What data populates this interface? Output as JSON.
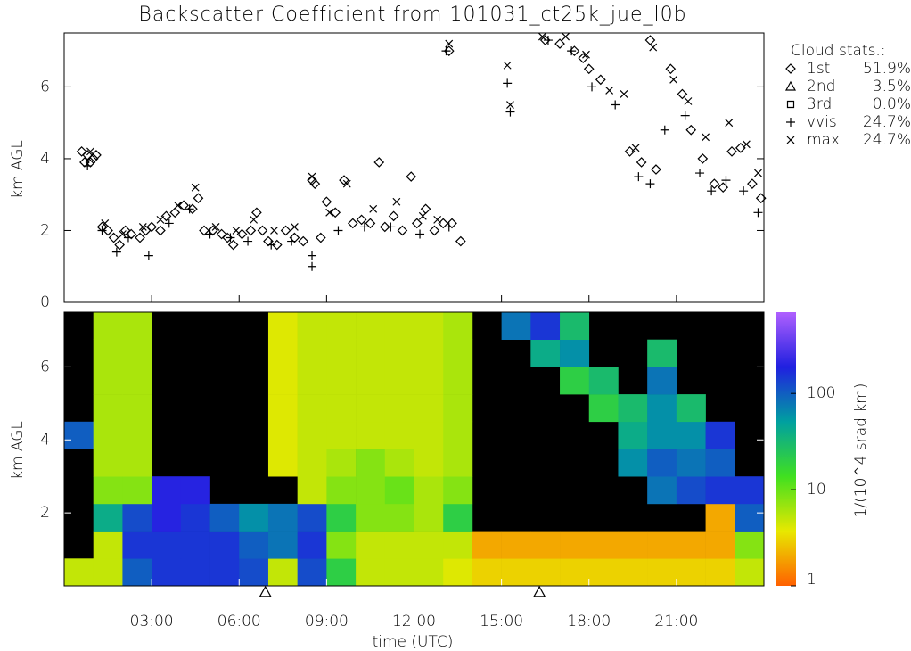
{
  "chart_data": [
    {
      "type": "scatter",
      "title": "Backscatter Coefficient from 101031_ct25k_jue_l0b",
      "ylabel": "km AGL",
      "xlim": [
        0,
        24
      ],
      "ylim": [
        0,
        7.5
      ],
      "yticks": [
        0,
        2,
        4,
        6
      ],
      "legend_title": "Cloud stats.:",
      "legend": "upper right",
      "series": [
        {
          "name": "1st",
          "share": "51.9%",
          "marker": "diamond",
          "color": "#000000",
          "x": [
            0.6,
            0.7,
            0.8,
            0.9,
            1.0,
            1.1,
            1.3,
            1.5,
            1.7,
            1.9,
            2.1,
            2.3,
            2.6,
            2.8,
            3.0,
            3.3,
            3.5,
            3.8,
            4.1,
            4.4,
            4.6,
            4.8,
            5.1,
            5.4,
            5.6,
            5.8,
            6.1,
            6.4,
            6.6,
            6.8,
            7.0,
            7.3,
            7.6,
            7.9,
            8.2,
            8.5,
            8.6,
            8.8,
            9.0,
            9.3,
            9.6,
            9.9,
            10.2,
            10.5,
            10.8,
            11.0,
            11.3,
            11.6,
            11.9,
            12.1,
            12.4,
            12.7,
            13.0,
            13.3,
            13.2,
            13.6,
            16.5,
            17.0,
            17.5,
            17.8,
            18.0,
            18.4,
            19.4,
            19.8,
            20.1,
            20.3,
            20.8,
            21.2,
            21.5,
            21.9,
            22.3,
            22.6,
            22.9,
            23.2,
            23.6,
            23.9
          ],
          "values": [
            4.2,
            3.9,
            4.1,
            3.9,
            4.0,
            4.1,
            2.1,
            2.0,
            1.8,
            1.6,
            2.0,
            1.9,
            1.8,
            2.0,
            2.1,
            2.0,
            2.4,
            2.5,
            2.7,
            2.6,
            2.9,
            2.0,
            2.0,
            1.9,
            1.8,
            1.6,
            1.9,
            2.0,
            2.5,
            2.0,
            1.7,
            1.6,
            2.0,
            1.8,
            1.7,
            3.4,
            3.3,
            1.8,
            2.8,
            2.5,
            3.4,
            2.2,
            2.3,
            2.2,
            3.9,
            2.1,
            2.4,
            2.0,
            3.5,
            2.2,
            2.6,
            2.0,
            2.2,
            2.2,
            7.0,
            1.7,
            7.3,
            7.2,
            7.0,
            6.8,
            6.5,
            6.2,
            4.2,
            3.9,
            7.3,
            3.7,
            6.5,
            5.8,
            4.8,
            4.0,
            3.3,
            3.2,
            4.2,
            4.3,
            3.3,
            2.9
          ]
        },
        {
          "name": "2nd",
          "share": "3.5%",
          "marker": "triangle",
          "color": "#000000",
          "x": [],
          "values": []
        },
        {
          "name": "3rd",
          "share": "0.0%",
          "marker": "square",
          "color": "#000000",
          "x": [],
          "values": []
        },
        {
          "name": "vvis",
          "share": "24.7%",
          "marker": "plus",
          "color": "#000000",
          "x": [
            0.8,
            1.3,
            1.8,
            2.2,
            2.9,
            3.6,
            4.3,
            5.0,
            5.7,
            6.3,
            7.1,
            7.8,
            8.5,
            8.5,
            9.4,
            10.3,
            11.2,
            12.2,
            13.2,
            13.1,
            15.2,
            15.3,
            16.6,
            17.4,
            18.1,
            18.9,
            19.7,
            20.1,
            20.6,
            21.3,
            21.8,
            22.2,
            22.7,
            23.3,
            23.8
          ],
          "values": [
            3.8,
            2.0,
            1.4,
            1.8,
            1.3,
            2.2,
            2.6,
            1.9,
            1.8,
            1.7,
            1.6,
            1.7,
            1.0,
            1.3,
            2.0,
            2.1,
            2.1,
            1.9,
            2.1,
            7.0,
            6.1,
            5.3,
            7.3,
            7.0,
            6.0,
            5.5,
            3.5,
            3.3,
            4.8,
            5.2,
            3.6,
            3.1,
            3.4,
            3.1,
            2.5
          ]
        },
        {
          "name": "max",
          "share": "24.7%",
          "marker": "cross",
          "color": "#000000",
          "x": [
            0.9,
            1.4,
            2.0,
            2.7,
            3.3,
            3.9,
            4.5,
            5.2,
            5.9,
            6.5,
            7.2,
            7.9,
            8.5,
            9.1,
            9.7,
            10.6,
            11.4,
            12.3,
            12.8,
            13.2,
            15.2,
            15.3,
            16.4,
            17.2,
            17.9,
            18.7,
            19.2,
            19.6,
            20.2,
            20.9,
            21.4,
            22.0,
            22.8,
            23.4,
            23.8
          ],
          "values": [
            4.2,
            2.2,
            1.9,
            2.1,
            2.3,
            2.7,
            3.2,
            2.1,
            2.0,
            2.3,
            2.0,
            2.1,
            3.5,
            2.5,
            3.3,
            2.6,
            2.8,
            2.4,
            2.3,
            7.2,
            6.6,
            5.5,
            7.4,
            7.4,
            6.9,
            5.9,
            5.8,
            4.3,
            7.1,
            6.2,
            5.6,
            4.6,
            5.0,
            4.4,
            3.6
          ]
        }
      ]
    },
    {
      "type": "heatmap",
      "xlabel": "time (UTC)",
      "ylabel": "km AGL",
      "xlim": [
        0,
        24
      ],
      "ylim": [
        0,
        7.5
      ],
      "yticks": [
        2,
        4,
        6
      ],
      "xticks": [
        {
          "value": 3,
          "label": "03:00"
        },
        {
          "value": 6,
          "label": "06:00"
        },
        {
          "value": 9,
          "label": "09:00"
        },
        {
          "value": 12,
          "label": "12:00"
        },
        {
          "value": 15,
          "label": "15:00"
        },
        {
          "value": 18,
          "label": "18:00"
        },
        {
          "value": 21,
          "label": "21:00"
        }
      ],
      "background": "#000000",
      "x_edges": [
        0,
        1,
        2,
        3,
        4,
        5,
        6,
        7,
        8,
        9,
        10,
        11,
        12,
        13,
        14,
        15,
        16,
        17,
        18,
        19,
        20,
        21,
        22,
        23,
        24
      ],
      "y_edges": [
        0,
        0.75,
        1.5,
        2.25,
        3,
        3.75,
        4.5,
        5.25,
        6,
        6.75,
        7.5
      ],
      "values": [
        [
          5,
          5,
          100,
          150,
          150,
          150,
          120,
          5,
          120,
          20,
          5,
          5,
          5,
          4,
          3,
          3,
          3,
          3,
          3,
          3,
          3,
          3,
          3,
          5
        ],
        [
          null,
          5,
          150,
          150,
          150,
          150,
          100,
          80,
          150,
          8,
          5,
          5,
          5,
          5,
          2,
          2,
          2,
          2,
          2,
          2,
          2,
          2,
          2,
          8
        ],
        [
          null,
          40,
          120,
          200,
          150,
          100,
          60,
          80,
          120,
          20,
          8,
          8,
          6,
          20,
          null,
          null,
          null,
          null,
          null,
          null,
          null,
          null,
          2,
          100
        ],
        [
          null,
          8,
          8,
          200,
          200,
          null,
          null,
          null,
          5,
          8,
          8,
          10,
          6,
          8,
          null,
          null,
          null,
          null,
          null,
          null,
          80,
          120,
          150,
          150
        ],
        [
          null,
          6,
          6,
          null,
          null,
          null,
          null,
          4,
          5,
          6,
          8,
          6,
          5,
          6,
          null,
          null,
          null,
          null,
          null,
          60,
          100,
          80,
          100,
          null
        ],
        [
          100,
          6,
          6,
          null,
          null,
          null,
          null,
          4,
          5,
          5,
          5,
          5,
          5,
          6,
          null,
          null,
          null,
          null,
          null,
          40,
          60,
          60,
          150,
          null
        ],
        [
          null,
          6,
          6,
          null,
          null,
          null,
          null,
          4,
          5,
          5,
          5,
          5,
          5,
          6,
          null,
          null,
          null,
          null,
          20,
          30,
          60,
          30,
          null,
          null
        ],
        [
          null,
          6,
          6,
          null,
          null,
          null,
          null,
          4,
          5,
          5,
          5,
          5,
          5,
          6,
          null,
          null,
          null,
          20,
          30,
          null,
          80,
          null,
          null,
          null
        ],
        [
          null,
          6,
          6,
          null,
          null,
          null,
          null,
          4,
          5,
          5,
          5,
          5,
          5,
          6,
          null,
          null,
          40,
          60,
          null,
          null,
          30,
          null,
          null,
          null
        ],
        [
          null,
          6,
          6,
          null,
          null,
          null,
          null,
          4,
          5,
          5,
          5,
          5,
          5,
          6,
          null,
          80,
          150,
          30,
          null,
          null,
          null,
          null,
          null,
          null
        ]
      ],
      "markers_x": [
        6.9,
        16.3
      ],
      "colorbar": {
        "label": "1/(10^4 srad km)",
        "lim": [
          1,
          700
        ],
        "ticks": [
          1,
          10,
          100
        ],
        "log": true,
        "colors": [
          "#ff6000",
          "#e8e800",
          "#40e020",
          "#00a0a0",
          "#2020e0",
          "#b060ff"
        ]
      }
    }
  ]
}
